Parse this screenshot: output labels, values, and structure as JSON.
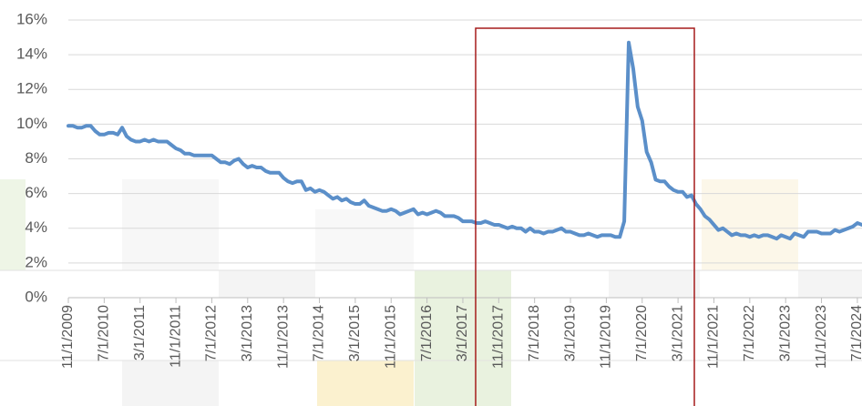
{
  "chart_data": {
    "type": "line",
    "categories": [
      "11/1/2009",
      null,
      null,
      null,
      null,
      null,
      null,
      null,
      "7/1/2010",
      null,
      null,
      null,
      null,
      null,
      null,
      null,
      "3/1/2011",
      null,
      null,
      null,
      null,
      null,
      null,
      null,
      "11/1/2011",
      null,
      null,
      null,
      null,
      null,
      null,
      null,
      "7/1/2012",
      null,
      null,
      null,
      null,
      null,
      null,
      null,
      "3/1/2013",
      null,
      null,
      null,
      null,
      null,
      null,
      null,
      "11/1/2013",
      null,
      null,
      null,
      null,
      null,
      null,
      null,
      "7/1/2014",
      null,
      null,
      null,
      null,
      null,
      null,
      null,
      "3/1/2015",
      null,
      null,
      null,
      null,
      null,
      null,
      null,
      "11/1/2015",
      null,
      null,
      null,
      null,
      null,
      null,
      null,
      "7/1/2016",
      null,
      null,
      null,
      null,
      null,
      null,
      null,
      "3/1/2017",
      null,
      null,
      null,
      null,
      null,
      null,
      null,
      "11/1/2017",
      null,
      null,
      null,
      null,
      null,
      null,
      null,
      "7/1/2018",
      null,
      null,
      null,
      null,
      null,
      null,
      null,
      "3/1/2019",
      null,
      null,
      null,
      null,
      null,
      null,
      null,
      "11/1/2019",
      null,
      null,
      null,
      null,
      null,
      null,
      null,
      "7/1/2020",
      null,
      null,
      null,
      null,
      null,
      null,
      null,
      "3/1/2021",
      null,
      null,
      null,
      null,
      null,
      null,
      null,
      "11/1/2021",
      null,
      null,
      null,
      null,
      null,
      null,
      null,
      "7/1/2022",
      null,
      null,
      null,
      null,
      null,
      null,
      null,
      "3/1/2023",
      null,
      null,
      null,
      null,
      null,
      null,
      null,
      "11/1/2023",
      null,
      null,
      null,
      null,
      null,
      null,
      null,
      "7/1/2024",
      null
    ],
    "series": [
      {
        "color": "#5b8fc9",
        "values": [
          9.9,
          9.9,
          9.8,
          9.8,
          9.9,
          9.9,
          9.6,
          9.4,
          9.4,
          9.5,
          9.5,
          9.4,
          9.8,
          9.3,
          9.1,
          9.0,
          9.0,
          9.1,
          9.0,
          9.1,
          9.0,
          9.0,
          9.0,
          8.8,
          8.6,
          8.5,
          8.3,
          8.3,
          8.2,
          8.2,
          8.2,
          8.2,
          8.2,
          8.0,
          7.8,
          7.8,
          7.7,
          7.9,
          8.0,
          7.7,
          7.5,
          7.6,
          7.5,
          7.5,
          7.3,
          7.2,
          7.2,
          7.2,
          6.9,
          6.7,
          6.6,
          6.7,
          6.7,
          6.2,
          6.3,
          6.1,
          6.2,
          6.1,
          5.9,
          5.7,
          5.8,
          5.6,
          5.7,
          5.5,
          5.4,
          5.4,
          5.6,
          5.3,
          5.2,
          5.1,
          5.0,
          5.0,
          5.1,
          5.0,
          4.8,
          4.9,
          5.0,
          5.1,
          4.8,
          4.9,
          4.8,
          4.9,
          5.0,
          4.9,
          4.7,
          4.7,
          4.7,
          4.6,
          4.4,
          4.4,
          4.4,
          4.3,
          4.3,
          4.4,
          4.3,
          4.2,
          4.2,
          4.1,
          4.0,
          4.1,
          4.0,
          4.0,
          3.8,
          4.0,
          3.8,
          3.8,
          3.7,
          3.8,
          3.8,
          3.9,
          4.0,
          3.8,
          3.8,
          3.7,
          3.6,
          3.6,
          3.7,
          3.6,
          3.5,
          3.6,
          3.6,
          3.6,
          3.5,
          3.5,
          4.4,
          14.7,
          13.2,
          11.0,
          10.2,
          8.4,
          7.8,
          6.8,
          6.7,
          6.7,
          6.4,
          6.2,
          6.1,
          6.1,
          5.8,
          5.9,
          5.4,
          5.1,
          4.7,
          4.5,
          4.2,
          3.9,
          4.0,
          3.8,
          3.6,
          3.7,
          3.6,
          3.6,
          3.5,
          3.6,
          3.5,
          3.6,
          3.6,
          3.5,
          3.4,
          3.6,
          3.5,
          3.4,
          3.7,
          3.6,
          3.5,
          3.8,
          3.8,
          3.8,
          3.7,
          3.7,
          3.7,
          3.9,
          3.8,
          3.9,
          4.0,
          4.1,
          4.3,
          4.2
        ]
      }
    ],
    "ylim": [
      0,
      16
    ],
    "yticks": [
      {
        "value": 0,
        "label": "0%"
      },
      {
        "value": 2,
        "label": "2%"
      },
      {
        "value": 4,
        "label": "4%"
      },
      {
        "value": 6,
        "label": "6%"
      },
      {
        "value": 8,
        "label": "8%"
      },
      {
        "value": 10,
        "label": "10%"
      },
      {
        "value": 12,
        "label": "12%"
      },
      {
        "value": 14,
        "label": "14%"
      },
      {
        "value": 16,
        "label": "16%"
      }
    ],
    "grid": true
  }
}
